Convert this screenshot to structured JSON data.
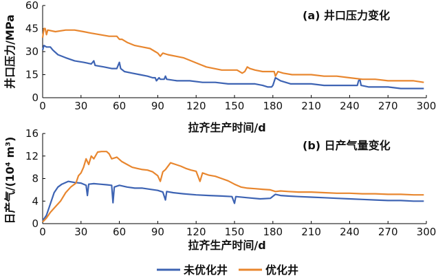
{
  "legend": [
    {
      "name": "未优化井",
      "color": "#3d63b3"
    },
    {
      "name": "优化井",
      "color": "#e8862e"
    }
  ],
  "chart_data": [
    {
      "type": "line",
      "title": "(a) 井口压力变化",
      "xlabel": "拉齐生产时间/d",
      "ylabel": "井口压力/MPa",
      "xlim": [
        0,
        300
      ],
      "ylim": [
        0,
        60
      ],
      "xticks": [
        0,
        30,
        60,
        90,
        120,
        150,
        180,
        210,
        240,
        270,
        300
      ],
      "yticks": [
        0,
        15,
        30,
        45,
        60
      ],
      "series": [
        {
          "name": "未优化井",
          "color": "#3d63b3",
          "points": [
            [
              0,
              31
            ],
            [
              1,
              34
            ],
            [
              3,
              33
            ],
            [
              6,
              33
            ],
            [
              8,
              31
            ],
            [
              12,
              28
            ],
            [
              18,
              26
            ],
            [
              25,
              24
            ],
            [
              32,
              23
            ],
            [
              38,
              22
            ],
            [
              40,
              24
            ],
            [
              41,
              21
            ],
            [
              48,
              20
            ],
            [
              54,
              19
            ],
            [
              58,
              19
            ],
            [
              59,
              21
            ],
            [
              60,
              23
            ],
            [
              61,
              19
            ],
            [
              64,
              17
            ],
            [
              70,
              16
            ],
            [
              76,
              15
            ],
            [
              82,
              14
            ],
            [
              86,
              13
            ],
            [
              88,
              13
            ],
            [
              89,
              11
            ],
            [
              91,
              13
            ],
            [
              92,
              12
            ],
            [
              95,
              12
            ],
            [
              96,
              14
            ],
            [
              97,
              12
            ],
            [
              105,
              11
            ],
            [
              115,
              11
            ],
            [
              125,
              10
            ],
            [
              135,
              10
            ],
            [
              145,
              9
            ],
            [
              155,
              9
            ],
            [
              160,
              9
            ],
            [
              166,
              9
            ],
            [
              172,
              8
            ],
            [
              176,
              7
            ],
            [
              179,
              7
            ],
            [
              180,
              8
            ],
            [
              182,
              13
            ],
            [
              184,
              12
            ],
            [
              186,
              11
            ],
            [
              190,
              10
            ],
            [
              194,
              9
            ],
            [
              200,
              9
            ],
            [
              210,
              9
            ],
            [
              220,
              8
            ],
            [
              230,
              8
            ],
            [
              240,
              8
            ],
            [
              246,
              8
            ],
            [
              247,
              11
            ],
            [
              248,
              12
            ],
            [
              249,
              8
            ],
            [
              255,
              7
            ],
            [
              262,
              7
            ],
            [
              270,
              7
            ],
            [
              280,
              6
            ],
            [
              290,
              6
            ],
            [
              298,
              6
            ]
          ]
        },
        {
          "name": "优化井",
          "color": "#e8862e",
          "points": [
            [
              0,
              39
            ],
            [
              1,
              45
            ],
            [
              2,
              45
            ],
            [
              3,
              41
            ],
            [
              4,
              44
            ],
            [
              10,
              43
            ],
            [
              18,
              44
            ],
            [
              25,
              44
            ],
            [
              32,
              43
            ],
            [
              38,
              42
            ],
            [
              45,
              41
            ],
            [
              52,
              40
            ],
            [
              58,
              40
            ],
            [
              60,
              38
            ],
            [
              62,
              38
            ],
            [
              66,
              36
            ],
            [
              72,
              34
            ],
            [
              78,
              33
            ],
            [
              84,
              32
            ],
            [
              88,
              30
            ],
            [
              90,
              29
            ],
            [
              92,
              27
            ],
            [
              94,
              29
            ],
            [
              98,
              28
            ],
            [
              104,
              27
            ],
            [
              110,
              26
            ],
            [
              116,
              24
            ],
            [
              122,
              22
            ],
            [
              128,
              20
            ],
            [
              134,
              19
            ],
            [
              140,
              18
            ],
            [
              146,
              18
            ],
            [
              152,
              18
            ],
            [
              156,
              16
            ],
            [
              158,
              17
            ],
            [
              160,
              20
            ],
            [
              162,
              19
            ],
            [
              166,
              18
            ],
            [
              172,
              17
            ],
            [
              178,
              17
            ],
            [
              181,
              17
            ],
            [
              182,
              14
            ],
            [
              184,
              17
            ],
            [
              188,
              16
            ],
            [
              195,
              15
            ],
            [
              202,
              15
            ],
            [
              210,
              15
            ],
            [
              220,
              14
            ],
            [
              230,
              14
            ],
            [
              240,
              13
            ],
            [
              250,
              12
            ],
            [
              260,
              12
            ],
            [
              270,
              11
            ],
            [
              280,
              11
            ],
            [
              290,
              11
            ],
            [
              298,
              10
            ]
          ]
        }
      ]
    },
    {
      "type": "line",
      "title": "(b) 日产气量变化",
      "xlabel": "拉齐生产时间/d",
      "ylabel": "日产气/(10⁴ m³)",
      "xlim": [
        0,
        300
      ],
      "ylim": [
        0,
        16
      ],
      "xticks": [
        0,
        30,
        60,
        90,
        120,
        150,
        180,
        210,
        240,
        270,
        300
      ],
      "yticks": [
        0,
        4,
        8,
        12,
        16
      ],
      "series": [
        {
          "name": "未优化井",
          "color": "#3d63b3",
          "points": [
            [
              0,
              0.5
            ],
            [
              3,
              1.5
            ],
            [
              6,
              3.5
            ],
            [
              9,
              5.5
            ],
            [
              12,
              6.5
            ],
            [
              15,
              7
            ],
            [
              20,
              7.5
            ],
            [
              25,
              7.3
            ],
            [
              30,
              7.2
            ],
            [
              34,
              6.8
            ],
            [
              35,
              5
            ],
            [
              36,
              7
            ],
            [
              40,
              7.1
            ],
            [
              45,
              7
            ],
            [
              50,
              6.9
            ],
            [
              54,
              6.8
            ],
            [
              55,
              3.7
            ],
            [
              56,
              6.5
            ],
            [
              60,
              6.8
            ],
            [
              66,
              6.5
            ],
            [
              72,
              6.3
            ],
            [
              78,
              6.3
            ],
            [
              84,
              6.1
            ],
            [
              90,
              5.9
            ],
            [
              94,
              5.6
            ],
            [
              96,
              4.2
            ],
            [
              97,
              5.7
            ],
            [
              102,
              5.5
            ],
            [
              110,
              5.3
            ],
            [
              120,
              5.1
            ],
            [
              130,
              5
            ],
            [
              140,
              4.9
            ],
            [
              148,
              4.8
            ],
            [
              150,
              3.6
            ],
            [
              151,
              4.8
            ],
            [
              160,
              4.6
            ],
            [
              170,
              4.4
            ],
            [
              178,
              4.5
            ],
            [
              182,
              5.2
            ],
            [
              186,
              5
            ],
            [
              192,
              4.9
            ],
            [
              200,
              4.8
            ],
            [
              210,
              4.7
            ],
            [
              220,
              4.6
            ],
            [
              230,
              4.5
            ],
            [
              240,
              4.4
            ],
            [
              250,
              4.3
            ],
            [
              260,
              4.2
            ],
            [
              270,
              4.1
            ],
            [
              280,
              4.1
            ],
            [
              290,
              4
            ],
            [
              298,
              4
            ]
          ]
        },
        {
          "name": "优化井",
          "color": "#e8862e",
          "points": [
            [
              0,
              0.3
            ],
            [
              3,
              1
            ],
            [
              6,
              2
            ],
            [
              10,
              3
            ],
            [
              14,
              4
            ],
            [
              18,
              5.5
            ],
            [
              22,
              6.5
            ],
            [
              26,
              7.2
            ],
            [
              28,
              8.5
            ],
            [
              30,
              9
            ],
            [
              32,
              10
            ],
            [
              34,
              11.5
            ],
            [
              36,
              10.5
            ],
            [
              38,
              12
            ],
            [
              40,
              11.5
            ],
            [
              43,
              12.7
            ],
            [
              46,
              12.8
            ],
            [
              50,
              12.8
            ],
            [
              52,
              12.4
            ],
            [
              54,
              11.5
            ],
            [
              58,
              11.8
            ],
            [
              62,
              11
            ],
            [
              66,
              10.5
            ],
            [
              70,
              10
            ],
            [
              74,
              9.8
            ],
            [
              78,
              9.6
            ],
            [
              82,
              9.5
            ],
            [
              86,
              9.2
            ],
            [
              90,
              8.5
            ],
            [
              92,
              7.5
            ],
            [
              94,
              9.2
            ],
            [
              96,
              9.6
            ],
            [
              100,
              10.8
            ],
            [
              104,
              10.5
            ],
            [
              108,
              10.2
            ],
            [
              112,
              9.8
            ],
            [
              116,
              9.5
            ],
            [
              120,
              9.3
            ],
            [
              123,
              7.5
            ],
            [
              125,
              9
            ],
            [
              130,
              8.6
            ],
            [
              135,
              8.4
            ],
            [
              140,
              8
            ],
            [
              145,
              7.6
            ],
            [
              150,
              7
            ],
            [
              155,
              6.5
            ],
            [
              160,
              6.3
            ],
            [
              166,
              6.2
            ],
            [
              172,
              6.1
            ],
            [
              178,
              6
            ],
            [
              182,
              5.7
            ],
            [
              186,
              5.8
            ],
            [
              192,
              5.7
            ],
            [
              200,
              5.6
            ],
            [
              210,
              5.6
            ],
            [
              220,
              5.5
            ],
            [
              230,
              5.4
            ],
            [
              240,
              5.4
            ],
            [
              250,
              5.3
            ],
            [
              260,
              5.3
            ],
            [
              270,
              5.2
            ],
            [
              280,
              5.2
            ],
            [
              290,
              5.1
            ],
            [
              298,
              5.1
            ]
          ]
        }
      ]
    }
  ]
}
